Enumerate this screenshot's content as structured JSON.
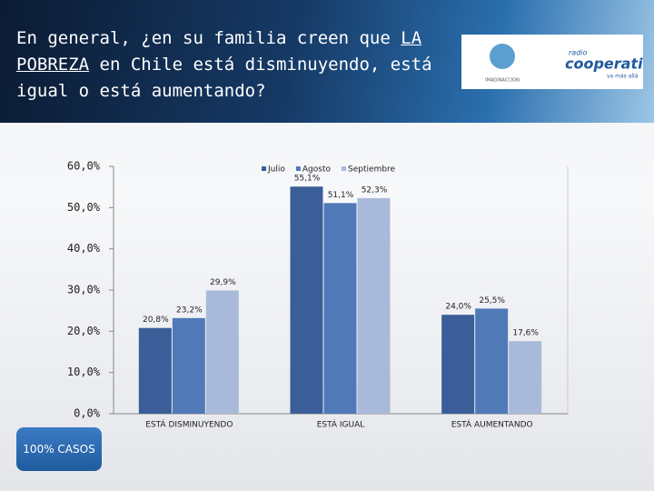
{
  "header": {
    "title": [
      "En general, ¿en su familia creen que ",
      "LA POBREZA",
      " en Chile está disminuyendo, está igual o está aumentando?"
    ],
    "logo": {
      "brand": "IMAGINACCION",
      "radio": "radio",
      "name": "cooperativa",
      "slogan": "va más allá"
    }
  },
  "footer": {
    "button": "100% CASOS"
  },
  "chart_data": {
    "type": "bar",
    "categories": [
      "ESTÁ DISMINUYENDO",
      "ESTÁ IGUAL",
      "ESTÁ AUMENTANDO"
    ],
    "series": [
      {
        "name": "Julio",
        "color": "#3b5e98",
        "values": [
          20.8,
          55.1,
          24.0
        ],
        "value_labels": [
          "20,8%",
          "55,1%",
          "24,0%"
        ]
      },
      {
        "name": "Agosto",
        "color": "#5079b8",
        "values": [
          23.2,
          51.1,
          25.5
        ],
        "value_labels": [
          "23,2%",
          "51,1%",
          "25,5%"
        ]
      },
      {
        "name": "Septiembre",
        "color": "#a9b9d9",
        "values": [
          29.9,
          52.3,
          17.6
        ],
        "value_labels": [
          "29,9%",
          "52,3%",
          "17,6%"
        ]
      }
    ],
    "ylim": [
      0,
      60
    ],
    "yticks": [
      {
        "value": 0,
        "label": "0,0%"
      },
      {
        "value": 10,
        "label": "10,0%"
      },
      {
        "value": 20,
        "label": "20,0%"
      },
      {
        "value": 30,
        "label": "30,0%"
      },
      {
        "value": 40,
        "label": "40,0%"
      },
      {
        "value": 50,
        "label": "50,0%"
      },
      {
        "value": 60,
        "label": "60,0%"
      }
    ],
    "legend": "top"
  }
}
